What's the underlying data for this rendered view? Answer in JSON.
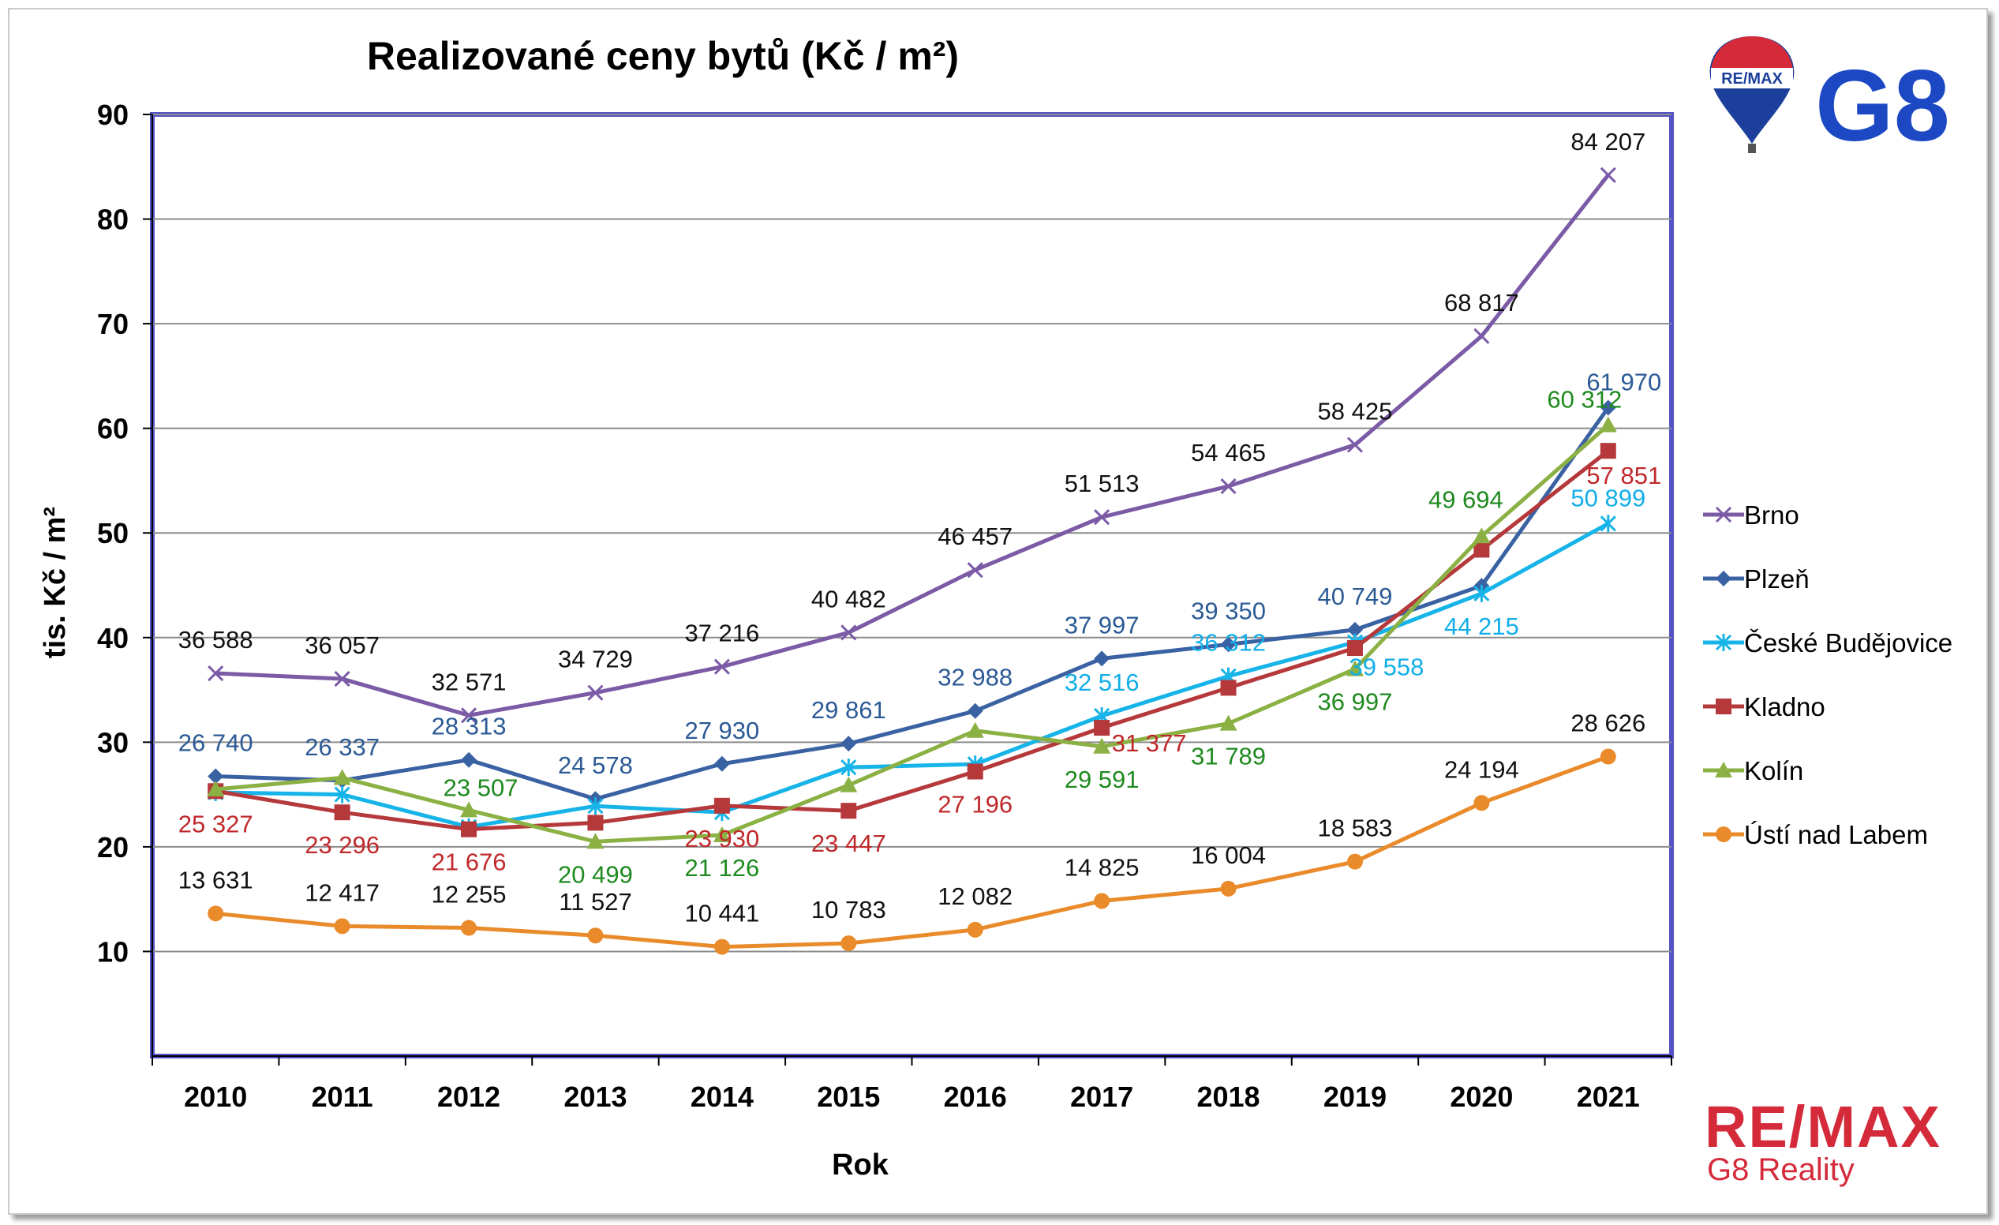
{
  "chart_data": {
    "type": "line",
    "title": "Realizované ceny bytů (Kč / m²)",
    "xlabel": "Rok",
    "ylabel": "tis. Kč / m²",
    "ylim": [
      0,
      90
    ],
    "yticks": [
      "10",
      "20",
      "30",
      "40",
      "50",
      "60",
      "70",
      "80",
      "90"
    ],
    "categories": [
      "2010",
      "2011",
      "2012",
      "2013",
      "2014",
      "2015",
      "2016",
      "2017",
      "2018",
      "2019",
      "2020",
      "2021"
    ],
    "legend_position": "right",
    "grid": true,
    "series": [
      {
        "name": "Brno",
        "marker": "x",
        "color": "#7b5aa6",
        "label_color": "#111111",
        "values": [
          36588,
          36057,
          32571,
          34729,
          37216,
          40482,
          46457,
          51513,
          54465,
          58425,
          68817,
          84207
        ],
        "labels": [
          "36 588",
          "36 057",
          "32 571",
          "34 729",
          "37 216",
          "40 482",
          "46 457",
          "51 513",
          "54 465",
          "58 425",
          "68 817",
          "84 207"
        ]
      },
      {
        "name": "Plzeň",
        "marker": "diamond",
        "color": "#3a62a3",
        "label_color": "#2b5a95",
        "values": [
          26740,
          26337,
          28313,
          24578,
          27930,
          29861,
          32988,
          37997,
          39350,
          40749,
          44950,
          61970
        ],
        "labels": [
          "26 740",
          "26 337",
          "28 313",
          "24 578",
          "27 930",
          "29 861",
          "32 988",
          "37 997",
          "39 350",
          "40 749",
          "",
          "61 970"
        ]
      },
      {
        "name": "České Budějovice",
        "marker": "star",
        "color": "#16b4e8",
        "label_color": "#12aee8",
        "values": [
          25200,
          25000,
          21900,
          23900,
          23300,
          27600,
          27900,
          32516,
          36312,
          39558,
          44215,
          50899
        ],
        "labels": [
          "",
          "",
          "",
          "",
          "",
          "",
          "",
          "32 516",
          "36 312",
          "39 558",
          "44 215",
          "50 899"
        ]
      },
      {
        "name": "Kladno",
        "marker": "square",
        "color": "#b5383b",
        "label_color": "#c0292b",
        "values": [
          25327,
          23296,
          21676,
          22300,
          23930,
          23447,
          27196,
          31377,
          35200,
          39000,
          48400,
          57851
        ],
        "labels": [
          "25 327",
          "23 296",
          "21 676",
          "",
          "23 930",
          "23 447",
          "27 196",
          "31 377",
          "",
          "",
          "",
          "57 851"
        ]
      },
      {
        "name": "Kolín",
        "marker": "triangle",
        "color": "#8bb043",
        "label_color": "#1f8a1f",
        "values": [
          25500,
          26600,
          23507,
          20499,
          21126,
          25900,
          31100,
          29591,
          31789,
          36997,
          49694,
          60312
        ],
        "labels": [
          "",
          "",
          "23 507",
          "20 499",
          "21 126",
          "",
          "",
          "29 591",
          "31 789",
          "36 997",
          "49 694",
          "60 312"
        ]
      },
      {
        "name": "Ústí nad Labem",
        "marker": "circle",
        "color": "#e98b2b",
        "label_color": "#111111",
        "values": [
          13631,
          12417,
          12255,
          11527,
          10441,
          10783,
          12082,
          14825,
          16004,
          18583,
          24194,
          28626
        ],
        "labels": [
          "13 631",
          "12 417",
          "12 255",
          "11 527",
          "10 441",
          "10 783",
          "12 082",
          "14 825",
          "16 004",
          "18 583",
          "24 194",
          "28 626"
        ]
      }
    ]
  },
  "branding": {
    "top_logo_balloon": "RE/MAX",
    "top_logo_mark": "G8",
    "bottom_logo": "RE/MAX",
    "bottom_logo_sub": "G8 Reality"
  }
}
